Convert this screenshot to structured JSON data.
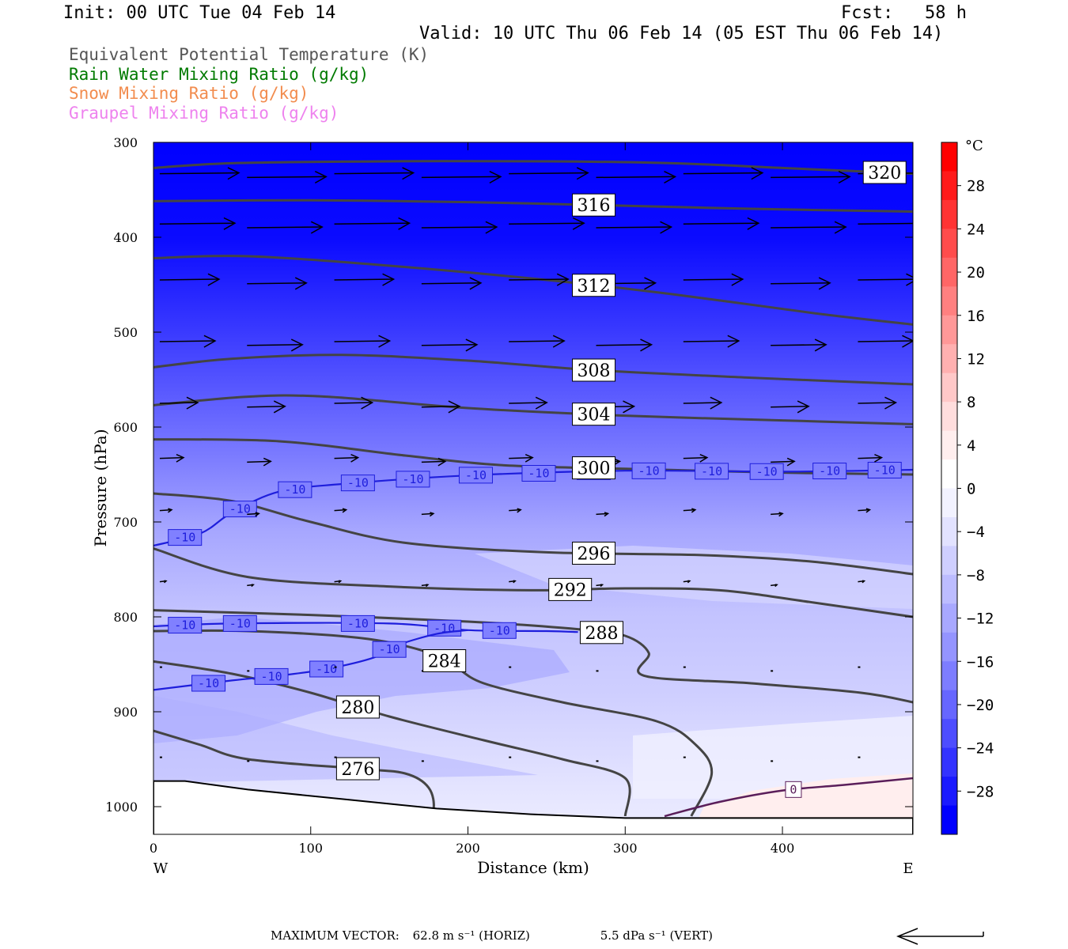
{
  "header": {
    "init": "Init: 00 UTC Tue 04 Feb 14",
    "fcst": "Fcst:   58 h",
    "valid": "Valid: 10 UTC Thu 06 Feb 14 (05 EST Thu 06 Feb 14)"
  },
  "legend": [
    {
      "label": "Equivalent Potential Temperature (K)",
      "color": "#555555"
    },
    {
      "label": "Rain Water Mixing Ratio (g/kg)",
      "color": "#007a00"
    },
    {
      "label": "Snow Mixing Ratio (g/kg)",
      "color": "#f28c4e"
    },
    {
      "label": "Graupel Mixing Ratio (g/kg)",
      "color": "#ee82ee"
    }
  ],
  "footer": {
    "max_vector_label": "MAXIMUM VECTOR:",
    "horiz": "62.8 m s⁻¹ (HORIZ)",
    "vert": "5.5 dPa s⁻¹ (VERT)"
  },
  "chart_data": {
    "type": "contour",
    "xlabel": "Distance (km)",
    "ylabel": "Pressure (hPa)",
    "xlim": [
      0,
      483
    ],
    "ylim": [
      300,
      1030
    ],
    "x_ticks": [
      0,
      100,
      200,
      300,
      400
    ],
    "y_ticks": [
      300,
      400,
      500,
      600,
      700,
      800,
      900,
      1000
    ],
    "x_end_labels": {
      "left": "W",
      "right": "E"
    },
    "colorbar": {
      "unit": "°C",
      "ticks": [
        28,
        24,
        20,
        16,
        12,
        8,
        4,
        0,
        -4,
        -8,
        -12,
        -16,
        -20,
        -24,
        -28
      ],
      "colors": [
        "#0000ff",
        "#1a1aff",
        "#3333ff",
        "#4d4dff",
        "#6666ff",
        "#7d7dff",
        "#9494ff",
        "#a8a8ff",
        "#bcbcff",
        "#cfcfff",
        "#e2e2ff",
        "#f2f2ff",
        "#ffffff",
        "#ffeeee",
        "#ffdddd",
        "#ffc8c8",
        "#ffb0b0",
        "#ff9898",
        "#ff8080",
        "#ff6666",
        "#ff4c4c",
        "#ff3333",
        "#ff1a1a",
        "#ff0000"
      ]
    },
    "theta_e_contours": [
      {
        "label": "320",
        "points": [
          [
            0,
            327
          ],
          [
            50,
            322
          ],
          [
            150,
            320
          ],
          [
            250,
            320
          ],
          [
            330,
            322
          ],
          [
            400,
            327
          ],
          [
            483,
            333
          ]
        ]
      },
      {
        "label": "316",
        "points": [
          [
            0,
            362
          ],
          [
            100,
            361
          ],
          [
            200,
            363
          ],
          [
            280,
            366
          ],
          [
            380,
            370
          ],
          [
            483,
            373
          ]
        ]
      },
      {
        "label": "312",
        "points": [
          [
            0,
            422
          ],
          [
            60,
            420
          ],
          [
            150,
            430
          ],
          [
            250,
            445
          ],
          [
            330,
            460
          ],
          [
            420,
            480
          ],
          [
            483,
            492
          ]
        ]
      },
      {
        "label": "308",
        "points": [
          [
            0,
            537
          ],
          [
            50,
            528
          ],
          [
            120,
            524
          ],
          [
            200,
            530
          ],
          [
            280,
            540
          ],
          [
            380,
            548
          ],
          [
            483,
            555
          ]
        ]
      },
      {
        "label": "304",
        "points": [
          [
            0,
            577
          ],
          [
            60,
            568
          ],
          [
            110,
            568
          ],
          [
            200,
            580
          ],
          [
            300,
            588
          ],
          [
            400,
            593
          ],
          [
            483,
            597
          ]
        ]
      },
      {
        "label": "300",
        "points": [
          [
            0,
            613
          ],
          [
            80,
            615
          ],
          [
            160,
            630
          ],
          [
            220,
            640
          ],
          [
            300,
            644
          ],
          [
            400,
            648
          ],
          [
            483,
            650
          ]
        ]
      },
      {
        "label": "296",
        "points": [
          [
            0,
            670
          ],
          [
            50,
            678
          ],
          [
            100,
            700
          ],
          [
            160,
            722
          ],
          [
            250,
            732
          ],
          [
            350,
            735
          ],
          [
            420,
            742
          ],
          [
            483,
            755
          ]
        ]
      },
      {
        "label": "292",
        "points": [
          [
            0,
            728
          ],
          [
            60,
            758
          ],
          [
            150,
            768
          ],
          [
            240,
            772
          ],
          [
            300,
            770
          ],
          [
            360,
            772
          ],
          [
            420,
            785
          ],
          [
            483,
            800
          ]
        ]
      },
      {
        "label": "288",
        "points": [
          [
            0,
            793
          ],
          [
            100,
            798
          ],
          [
            200,
            805
          ],
          [
            270,
            813
          ],
          [
            300,
            820
          ],
          [
            315,
            838
          ],
          [
            312,
            862
          ],
          [
            380,
            870
          ],
          [
            450,
            880
          ],
          [
            483,
            890
          ]
        ]
      },
      {
        "label": "284",
        "points": [
          [
            0,
            815
          ],
          [
            60,
            815
          ],
          [
            130,
            822
          ],
          [
            170,
            835
          ],
          [
            190,
            850
          ],
          [
            210,
            870
          ],
          [
            260,
            890
          ],
          [
            320,
            910
          ],
          [
            345,
            935
          ],
          [
            355,
            965
          ],
          [
            342,
            1010
          ]
        ]
      },
      {
        "label": "280",
        "points": [
          [
            0,
            847
          ],
          [
            50,
            860
          ],
          [
            100,
            880
          ],
          [
            150,
            905
          ],
          [
            210,
            930
          ],
          [
            260,
            950
          ],
          [
            300,
            970
          ],
          [
            300,
            1010
          ]
        ]
      },
      {
        "label": "276",
        "points": [
          [
            0,
            920
          ],
          [
            30,
            935
          ],
          [
            60,
            950
          ],
          [
            130,
            960
          ],
          [
            160,
            965
          ],
          [
            175,
            980
          ],
          [
            178,
            1005
          ],
          [
            170,
            1030
          ]
        ]
      }
    ],
    "isotherm_minus10": [
      {
        "label": "-10",
        "points": [
          [
            0,
            725
          ],
          [
            30,
            712
          ],
          [
            50,
            690
          ],
          [
            80,
            668
          ],
          [
            120,
            660
          ],
          [
            200,
            651
          ],
          [
            300,
            646
          ],
          [
            400,
            647
          ],
          [
            483,
            645
          ]
        ]
      },
      {
        "label": "-10",
        "points": [
          [
            0,
            810
          ],
          [
            50,
            807
          ],
          [
            150,
            807
          ],
          [
            200,
            814
          ],
          [
            250,
            815
          ],
          [
            270,
            816
          ]
        ]
      },
      {
        "label": "-10",
        "points": [
          [
            0,
            877
          ],
          [
            50,
            867
          ],
          [
            80,
            862
          ],
          [
            110,
            855
          ],
          [
            140,
            843
          ],
          [
            155,
            830
          ],
          [
            180,
            818
          ],
          [
            200,
            814
          ]
        ]
      }
    ],
    "isotherm_zero": {
      "label": "0",
      "points": [
        [
          325,
          1010
        ],
        [
          360,
          995
        ],
        [
          400,
          983
        ],
        [
          440,
          977
        ],
        [
          483,
          970
        ]
      ]
    },
    "terrain": [
      [
        0,
        973
      ],
      [
        20,
        973
      ],
      [
        60,
        982
      ],
      [
        120,
        992
      ],
      [
        180,
        1002
      ],
      [
        240,
        1008
      ],
      [
        300,
        1012
      ],
      [
        483,
        1012
      ]
    ]
  }
}
